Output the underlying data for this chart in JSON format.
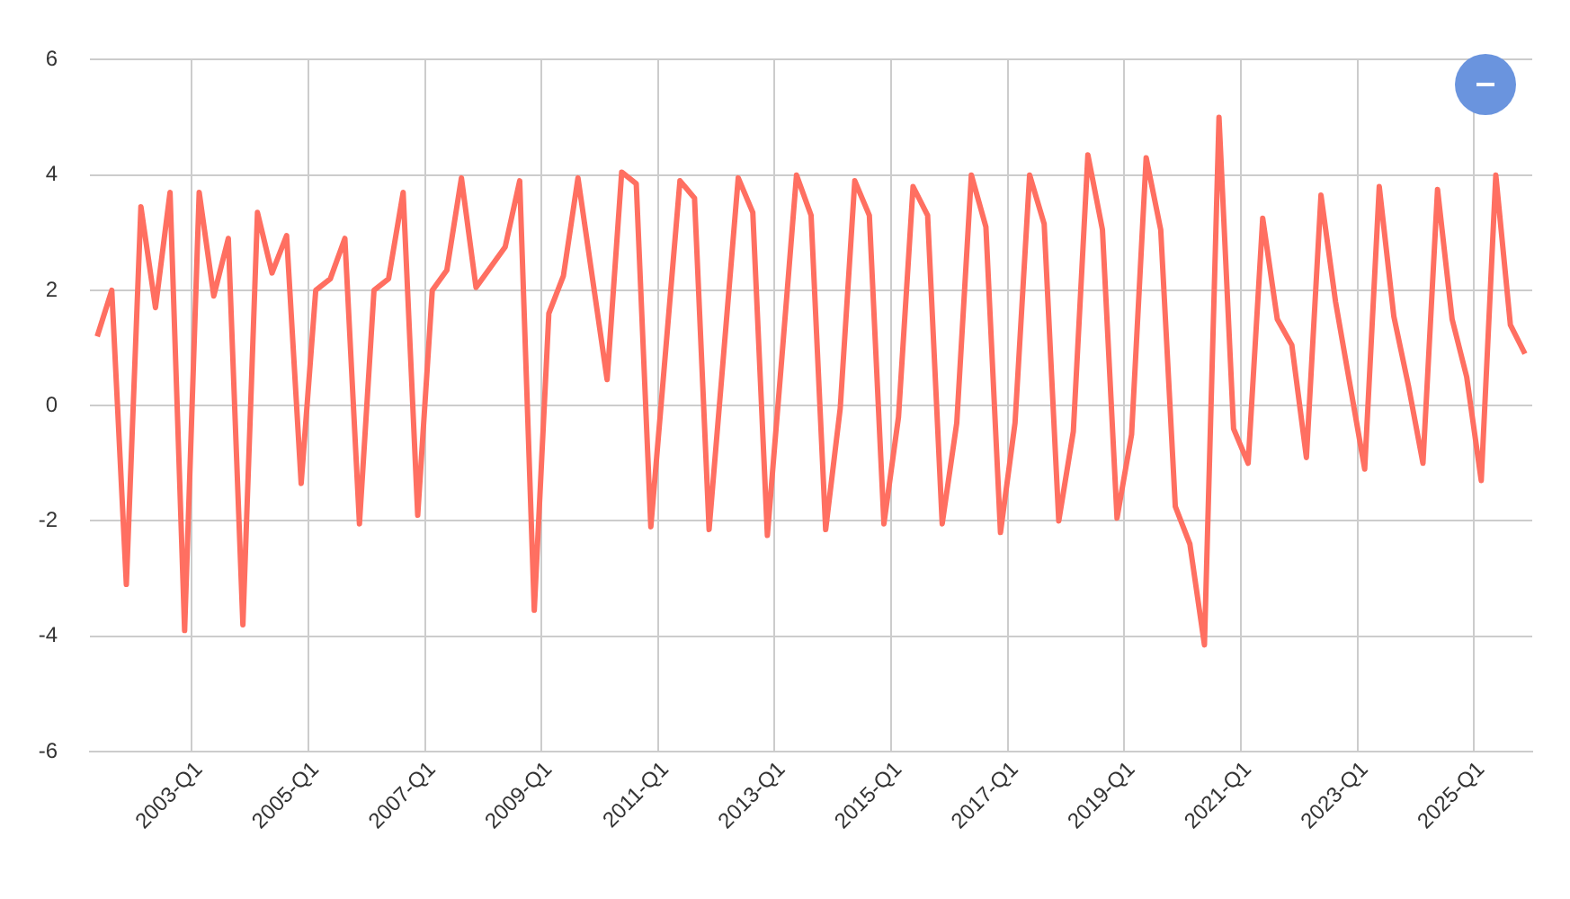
{
  "chart_data": {
    "type": "line",
    "categories": [
      null,
      null,
      null,
      null,
      null,
      null,
      null,
      "2003-Q1",
      null,
      null,
      null,
      null,
      null,
      null,
      null,
      "2005-Q1",
      null,
      null,
      null,
      null,
      null,
      null,
      null,
      "2007-Q1",
      null,
      null,
      null,
      null,
      null,
      null,
      null,
      "2009-Q1",
      null,
      null,
      null,
      null,
      null,
      null,
      null,
      "2011-Q1",
      null,
      null,
      null,
      null,
      null,
      null,
      null,
      "2013-Q1",
      null,
      null,
      null,
      null,
      null,
      null,
      null,
      "2015-Q1",
      null,
      null,
      null,
      null,
      null,
      null,
      null,
      "2017-Q1",
      null,
      null,
      null,
      null,
      null,
      null,
      null,
      "2019-Q1",
      null,
      null,
      null,
      null,
      null,
      null,
      null,
      "2021-Q1",
      null,
      null,
      null,
      null,
      null,
      null,
      null,
      "2023-Q1",
      null,
      null,
      null,
      null,
      null,
      null,
      null,
      "2025-Q1",
      null,
      null,
      null
    ],
    "series": [
      {
        "color": "#ff6f61",
        "values": [
          1.2,
          2.0,
          -3.1,
          3.45,
          1.7,
          3.7,
          -3.9,
          3.7,
          1.9,
          2.9,
          -3.8,
          3.35,
          2.3,
          2.95,
          -1.35,
          2.0,
          2.2,
          2.9,
          -2.05,
          2.0,
          2.2,
          3.7,
          -1.9,
          2.0,
          2.35,
          3.95,
          2.05,
          2.4,
          2.75,
          3.9,
          -3.55,
          1.6,
          2.25,
          3.95,
          2.2,
          0.45,
          4.05,
          3.85,
          -2.1,
          0.9,
          3.9,
          3.6,
          -2.15,
          0.9,
          3.95,
          3.35,
          -2.25,
          0.85,
          4.0,
          3.3,
          -2.15,
          -0.05,
          3.9,
          3.3,
          -2.05,
          -0.2,
          3.8,
          3.3,
          -2.05,
          -0.3,
          4.0,
          3.1,
          -2.2,
          -0.3,
          4.0,
          3.15,
          -2.0,
          -0.45,
          4.35,
          3.05,
          -1.95,
          -0.5,
          4.3,
          3.05,
          -1.75,
          -2.4,
          -4.15,
          5.0,
          -0.4,
          -1.0,
          3.25,
          1.5,
          1.05,
          -0.9,
          3.65,
          1.8,
          0.35,
          -1.1,
          3.8,
          1.55,
          0.35,
          -1.0,
          3.75,
          1.5,
          0.5,
          -1.3,
          4.0,
          1.4,
          0.9
        ]
      }
    ],
    "ylim": [
      -6,
      6
    ],
    "yticks": [
      -6,
      -4,
      -2,
      0,
      2,
      4,
      6
    ],
    "grid": true,
    "marker": "none",
    "line_style": "solid"
  }
}
